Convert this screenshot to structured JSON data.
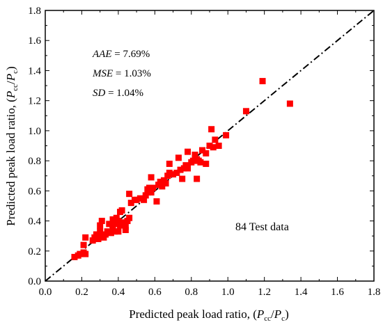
{
  "chart_data": {
    "type": "scatter",
    "title": "",
    "xlabel": {
      "main": "Predicted peak load ratio, (",
      "p1": "P",
      "s1": "cc",
      "sep": "/",
      "p2": "P",
      "s2": "c",
      "close": ")"
    },
    "ylabel": {
      "main": "Predicted peak load ratio, (",
      "p1": "P",
      "s1": "cc",
      "sep": "/",
      "p2": "P",
      "s2": "c",
      "close": ")"
    },
    "xlim": [
      0.0,
      1.8
    ],
    "ylim": [
      0.0,
      1.8
    ],
    "xticks": [
      "0.0",
      "0.2",
      "0.4",
      "0.6",
      "0.8",
      "1.0",
      "1.2",
      "1.4",
      "1.6",
      "1.8"
    ],
    "yticks": [
      "0.0",
      "0.2",
      "0.4",
      "0.6",
      "0.8",
      "1.0",
      "1.2",
      "1.4",
      "1.6",
      "1.8"
    ],
    "grid": false,
    "marker_color": "#ff0000",
    "reference_line": {
      "from": [
        0.0,
        0.0
      ],
      "to": [
        1.8,
        1.8
      ],
      "style": "dash-dot"
    },
    "stats": [
      {
        "name": "AAE",
        "value": " = 7.69%"
      },
      {
        "name": "MSE",
        "value": " = 1.03%"
      },
      {
        "name": "SD",
        "value": " = 1.04%"
      }
    ],
    "annotation": "84 Test data",
    "points": [
      [
        0.16,
        0.16
      ],
      [
        0.18,
        0.17
      ],
      [
        0.19,
        0.18
      ],
      [
        0.21,
        0.19
      ],
      [
        0.22,
        0.18
      ],
      [
        0.21,
        0.24
      ],
      [
        0.22,
        0.29
      ],
      [
        0.26,
        0.27
      ],
      [
        0.27,
        0.29
      ],
      [
        0.28,
        0.31
      ],
      [
        0.29,
        0.28
      ],
      [
        0.3,
        0.3
      ],
      [
        0.3,
        0.33
      ],
      [
        0.3,
        0.37
      ],
      [
        0.31,
        0.4
      ],
      [
        0.32,
        0.29
      ],
      [
        0.33,
        0.31
      ],
      [
        0.34,
        0.33
      ],
      [
        0.35,
        0.38
      ],
      [
        0.36,
        0.32
      ],
      [
        0.37,
        0.35
      ],
      [
        0.37,
        0.41
      ],
      [
        0.38,
        0.33
      ],
      [
        0.38,
        0.38
      ],
      [
        0.39,
        0.42
      ],
      [
        0.4,
        0.33
      ],
      [
        0.4,
        0.4
      ],
      [
        0.41,
        0.37
      ],
      [
        0.41,
        0.46
      ],
      [
        0.42,
        0.47
      ],
      [
        0.43,
        0.39
      ],
      [
        0.44,
        0.36
      ],
      [
        0.44,
        0.34
      ],
      [
        0.45,
        0.4
      ],
      [
        0.46,
        0.42
      ],
      [
        0.46,
        0.58
      ],
      [
        0.47,
        0.52
      ],
      [
        0.49,
        0.54
      ],
      [
        0.5,
        0.54
      ],
      [
        0.52,
        0.55
      ],
      [
        0.54,
        0.54
      ],
      [
        0.55,
        0.57
      ],
      [
        0.56,
        0.61
      ],
      [
        0.57,
        0.62
      ],
      [
        0.58,
        0.59
      ],
      [
        0.58,
        0.69
      ],
      [
        0.59,
        0.62
      ],
      [
        0.61,
        0.53
      ],
      [
        0.62,
        0.64
      ],
      [
        0.63,
        0.66
      ],
      [
        0.64,
        0.63
      ],
      [
        0.65,
        0.67
      ],
      [
        0.66,
        0.65
      ],
      [
        0.67,
        0.7
      ],
      [
        0.68,
        0.72
      ],
      [
        0.68,
        0.78
      ],
      [
        0.7,
        0.71
      ],
      [
        0.72,
        0.72
      ],
      [
        0.73,
        0.82
      ],
      [
        0.74,
        0.74
      ],
      [
        0.75,
        0.68
      ],
      [
        0.76,
        0.75
      ],
      [
        0.77,
        0.77
      ],
      [
        0.78,
        0.75
      ],
      [
        0.78,
        0.86
      ],
      [
        0.8,
        0.79
      ],
      [
        0.81,
        0.8
      ],
      [
        0.82,
        0.84
      ],
      [
        0.83,
        0.81
      ],
      [
        0.83,
        0.68
      ],
      [
        0.84,
        0.8
      ],
      [
        0.85,
        0.79
      ],
      [
        0.86,
        0.87
      ],
      [
        0.88,
        0.78
      ],
      [
        0.88,
        0.85
      ],
      [
        0.9,
        0.9
      ],
      [
        0.91,
        1.01
      ],
      [
        0.92,
        0.89
      ],
      [
        0.93,
        0.94
      ],
      [
        0.95,
        0.9
      ],
      [
        0.99,
        0.97
      ],
      [
        1.1,
        1.13
      ],
      [
        1.19,
        1.33
      ],
      [
        1.34,
        1.18
      ]
    ]
  }
}
